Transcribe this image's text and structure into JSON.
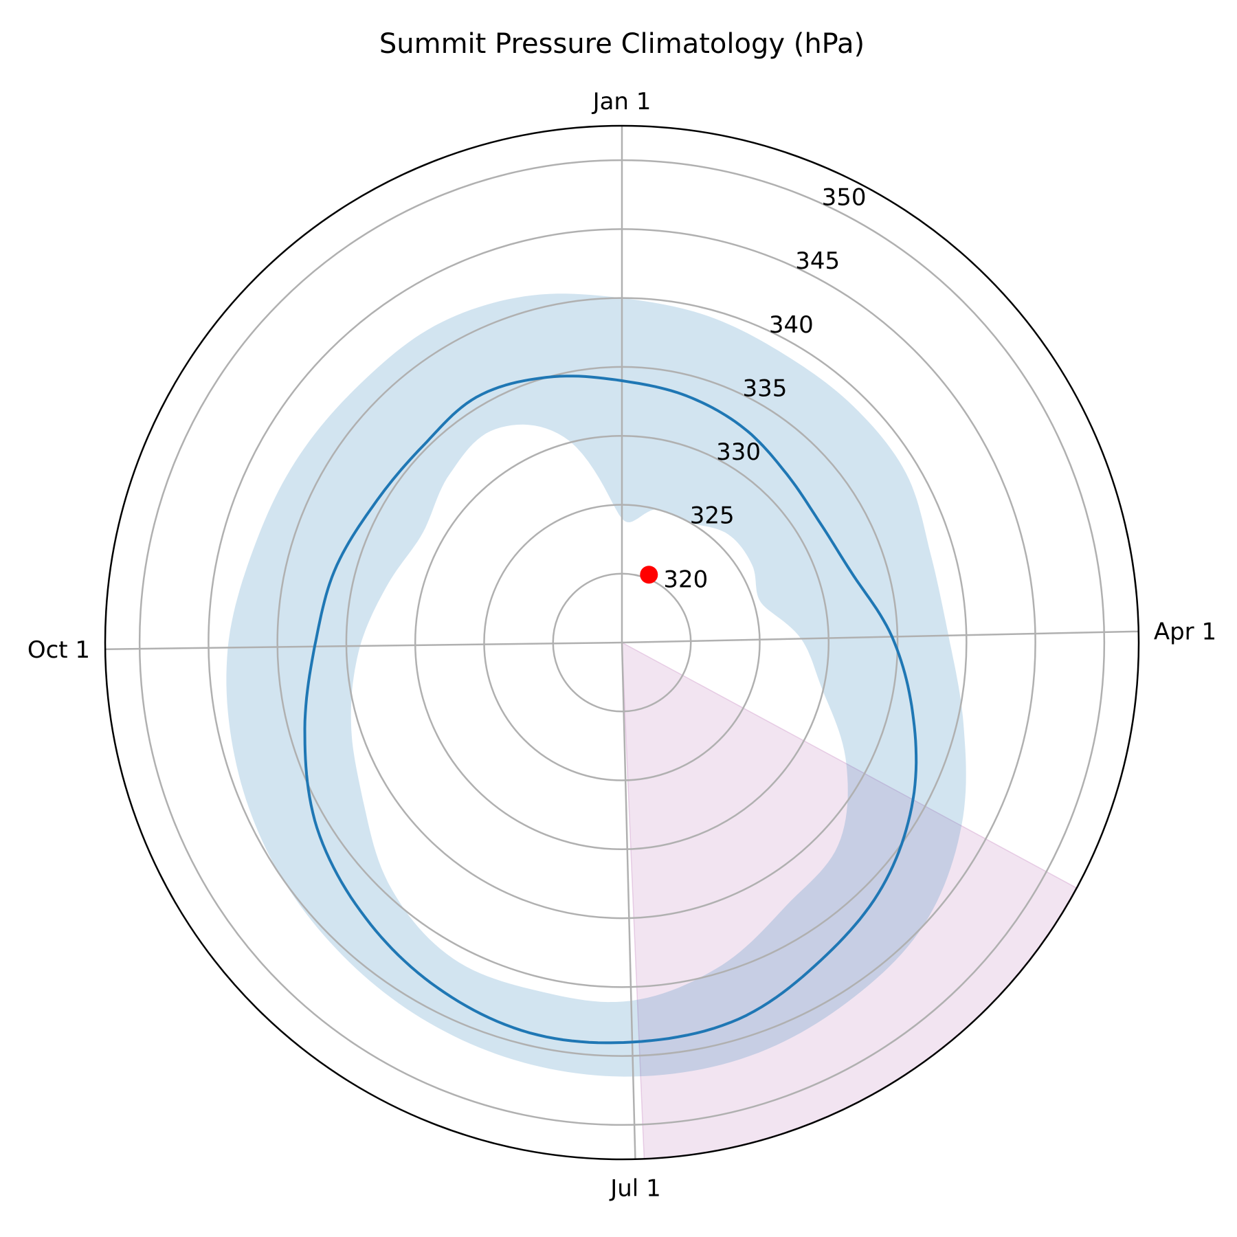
{
  "chart_data": {
    "type": "polar-line",
    "title": "Summit Pressure Climatology (hPa)",
    "theta_direction": "clockwise",
    "theta_zero": "top",
    "theta_ticks": [
      {
        "label": "Jan 1",
        "day": 0
      },
      {
        "label": "Apr 1",
        "day": 90
      },
      {
        "label": "Jul 1",
        "day": 181
      },
      {
        "label": "Oct 1",
        "day": 273
      }
    ],
    "r_ticks": [
      "320",
      "325",
      "330",
      "335",
      "340",
      "345",
      "350"
    ],
    "r_range": [
      315,
      352.5
    ],
    "grid": true,
    "series": [
      {
        "kind": "line",
        "color": "#1f77b4",
        "day": [
          0,
          15,
          30,
          45,
          60,
          75,
          90,
          105,
          120,
          135,
          150,
          165,
          181,
          196,
          211,
          226,
          242,
          257,
          273,
          288,
          303,
          319,
          334,
          349,
          365
        ],
        "value": [
          334.0,
          333.5,
          332.9,
          332.1,
          331.8,
          332.5,
          334.6,
          336.7,
          339.0,
          340.9,
          342.2,
          343.6,
          344.0,
          344.1,
          343.4,
          342.3,
          340.9,
          339.0,
          337.3,
          336.5,
          335.6,
          335.3,
          335.7,
          335.0,
          334.0
        ]
      },
      {
        "kind": "band",
        "color": "#1f77b4",
        "opacity": 0.2,
        "day": [
          0,
          15,
          30,
          45,
          60,
          75,
          90,
          105,
          120,
          135,
          150,
          165,
          181,
          196,
          211,
          226,
          242,
          257,
          273,
          288,
          303,
          319,
          334,
          349,
          365
        ],
        "lower": [
          324.0,
          325.0,
          325.0,
          326.0,
          326.0,
          325.5,
          328.0,
          330.0,
          333.5,
          336.5,
          337.5,
          339.5,
          341.0,
          341.0,
          341.0,
          339.5,
          337.0,
          335.5,
          334.0,
          332.5,
          331.5,
          332.5,
          333.0,
          330.5,
          324.0
        ],
        "upper": [
          340.0,
          339.5,
          339.0,
          339.0,
          339.0,
          338.3,
          338.7,
          340.5,
          343.0,
          345.0,
          345.8,
          346.4,
          346.5,
          346.3,
          345.9,
          345.4,
          344.9,
          344.3,
          343.6,
          342.6,
          342.1,
          341.7,
          341.7,
          341.1,
          340.0
        ]
      },
      {
        "kind": "sector",
        "color": "#c586c0",
        "opacity": 0.22,
        "day_start": 120,
        "day_end": 180
      },
      {
        "kind": "marker",
        "color": "#ff0000",
        "day": 22,
        "value": 320.3
      }
    ]
  }
}
